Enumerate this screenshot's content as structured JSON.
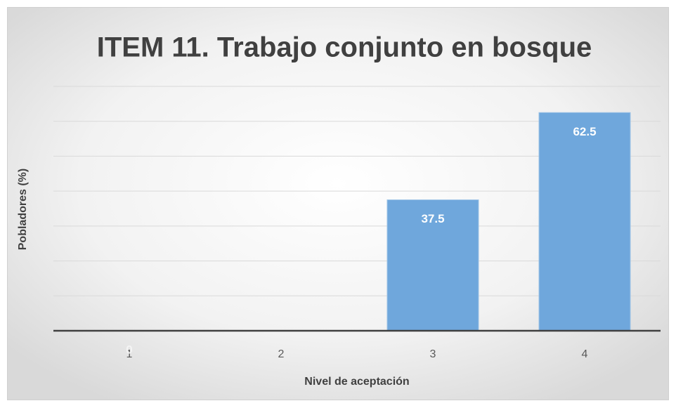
{
  "chart_data": {
    "type": "bar",
    "title": "ITEM 11. Trabajo conjunto en bosque",
    "x_label": "Nivel de aceptación",
    "y_label": "Pobladores (%)",
    "categories": [
      "1",
      "2",
      "3",
      "4"
    ],
    "values": [
      0,
      null,
      37.5,
      62.5
    ],
    "color": "#6fa7dc",
    "ylim": [
      0,
      70
    ],
    "yticks": [
      0,
      10,
      20,
      30,
      40,
      50,
      60,
      70
    ],
    "grid": true
  }
}
